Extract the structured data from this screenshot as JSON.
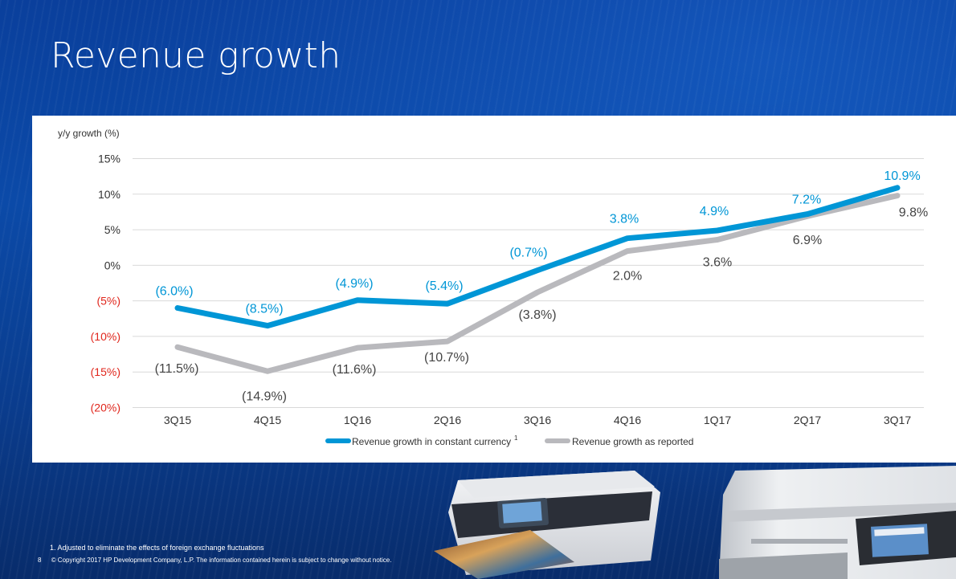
{
  "page": {
    "title": "Revenue growth",
    "footnote": "1.  Adjusted to eliminate the effects of foreign exchange fluctuations",
    "page_number": "8",
    "copyright": "© Copyright 2017 HP Development Company, L.P. The information contained herein is subject to change without notice."
  },
  "colors": {
    "constant": "#0096d6",
    "reported": "#b9b9bd",
    "negative_tick": "#e0261c",
    "tick": "#333333"
  },
  "chart_data": {
    "type": "line",
    "ylabel": "y/y growth (%)",
    "categories": [
      "3Q15",
      "4Q15",
      "1Q16",
      "2Q16",
      "3Q16",
      "4Q16",
      "1Q17",
      "2Q17",
      "3Q17"
    ],
    "ylim": [
      -20,
      15
    ],
    "yticks": [
      {
        "value": 15,
        "label": "15%"
      },
      {
        "value": 10,
        "label": "10%"
      },
      {
        "value": 5,
        "label": "5%"
      },
      {
        "value": 0,
        "label": "0%"
      },
      {
        "value": -5,
        "label": "(5%)"
      },
      {
        "value": -10,
        "label": "(10%)"
      },
      {
        "value": -15,
        "label": "(15%)"
      },
      {
        "value": -20,
        "label": "(20%)"
      }
    ],
    "grid": true,
    "legend_position": "bottom",
    "series": [
      {
        "name": "Revenue growth in constant currency",
        "name_sup": "1",
        "values": [
          -6.0,
          -8.5,
          -4.9,
          -5.4,
          -0.7,
          3.8,
          4.9,
          7.2,
          10.9
        ],
        "labels": [
          "(6.0%)",
          "(8.5%)",
          "(4.9%)",
          "(5.4%)",
          "(0.7%)",
          "3.8%",
          "4.9%",
          "7.2%",
          "10.9%"
        ]
      },
      {
        "name": "Revenue growth as reported",
        "values": [
          -11.5,
          -14.9,
          -11.6,
          -10.7,
          -3.8,
          2.0,
          3.6,
          6.9,
          9.8
        ],
        "labels": [
          "(11.5%)",
          "(14.9%)",
          "(11.6%)",
          "(10.7%)",
          "(3.8%)",
          "2.0%",
          "3.6%",
          "6.9%",
          "9.8%"
        ]
      }
    ]
  }
}
